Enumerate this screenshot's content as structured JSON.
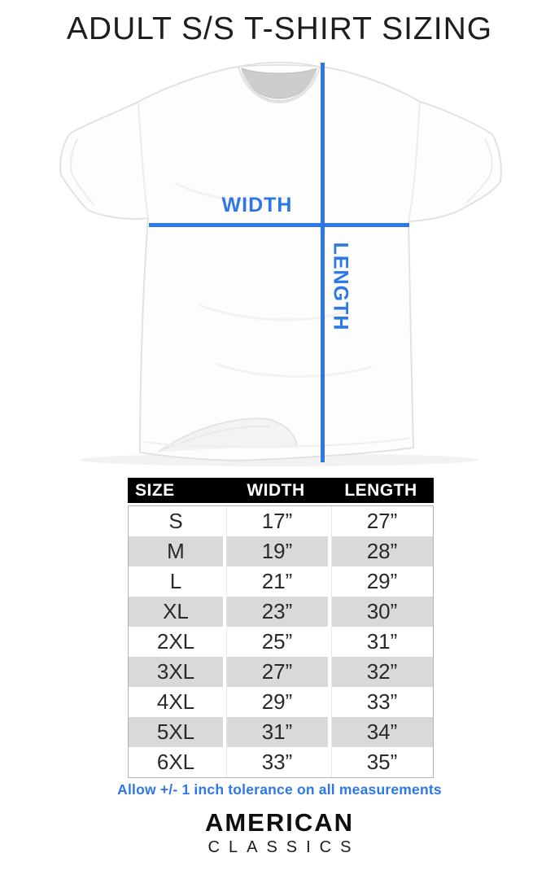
{
  "title": "ADULT S/S T-SHIRT SIZING",
  "diagram": {
    "width_label": "WIDTH",
    "length_label": "LENGTH"
  },
  "chart_data": {
    "type": "table",
    "title": "ADULT S/S T-SHIRT SIZING",
    "columns": [
      "SIZE",
      "WIDTH",
      "LENGTH"
    ],
    "rows": [
      [
        "S",
        "17”",
        "27”"
      ],
      [
        "M",
        "19”",
        "28”"
      ],
      [
        "L",
        "21”",
        "29”"
      ],
      [
        "XL",
        "23”",
        "30”"
      ],
      [
        "2XL",
        "25”",
        "31”"
      ],
      [
        "3XL",
        "27”",
        "32”"
      ],
      [
        "4XL",
        "29”",
        "33”"
      ],
      [
        "5XL",
        "31”",
        "34”"
      ],
      [
        "6XL",
        "33”",
        "35”"
      ]
    ],
    "units": "inches",
    "note": "Allow +/- 1 inch tolerance on all measurements"
  },
  "note": "Allow +/- 1 inch tolerance on all measurements",
  "brand": {
    "line1": "AMERICAN",
    "line2": "CLASSICS"
  },
  "colors": {
    "accent_blue": "#2d78e6",
    "header_bg": "#000000",
    "header_text": "#ffffff",
    "stripe_gray": "#d9d9d9",
    "title_text": "#1e1e1e"
  }
}
